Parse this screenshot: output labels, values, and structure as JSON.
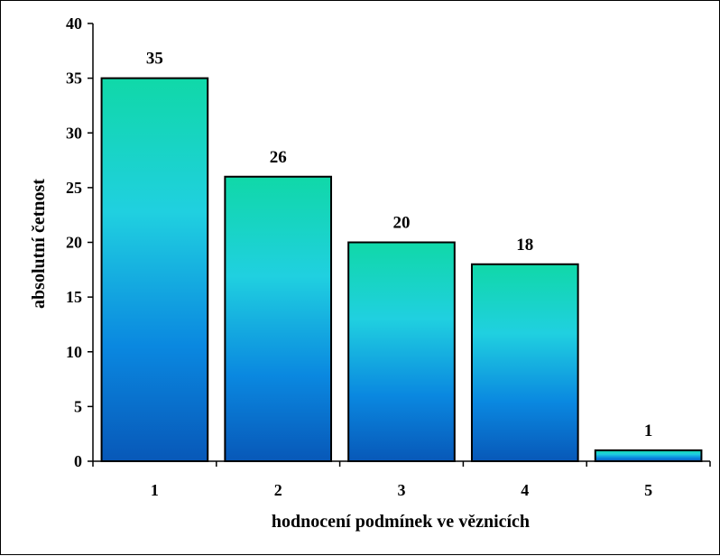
{
  "chart_data": {
    "type": "bar",
    "categories": [
      "1",
      "2",
      "3",
      "4",
      "5"
    ],
    "values": [
      35,
      26,
      20,
      18,
      1
    ],
    "data_labels": [
      "35",
      "26",
      "20",
      "18",
      "1"
    ],
    "title": "",
    "xlabel": "hodnocení podmínek ve věznicích",
    "ylabel": "absolutní četnost",
    "ylim": [
      0,
      40
    ],
    "yticks": [
      0,
      5,
      10,
      15,
      20,
      25,
      30,
      35,
      40
    ],
    "ytick_labels": [
      "0",
      "5",
      "10",
      "15",
      "20",
      "25",
      "30",
      "35",
      "40"
    ],
    "grid": false,
    "legend": "none",
    "colors": {
      "bar_top": "#10D8A8",
      "bar_mid": "#20D0E0",
      "bar_low": "#0A88E0",
      "bar_bottom": "#0858B8",
      "bar_border": "#000000",
      "axis": "#000000"
    }
  }
}
